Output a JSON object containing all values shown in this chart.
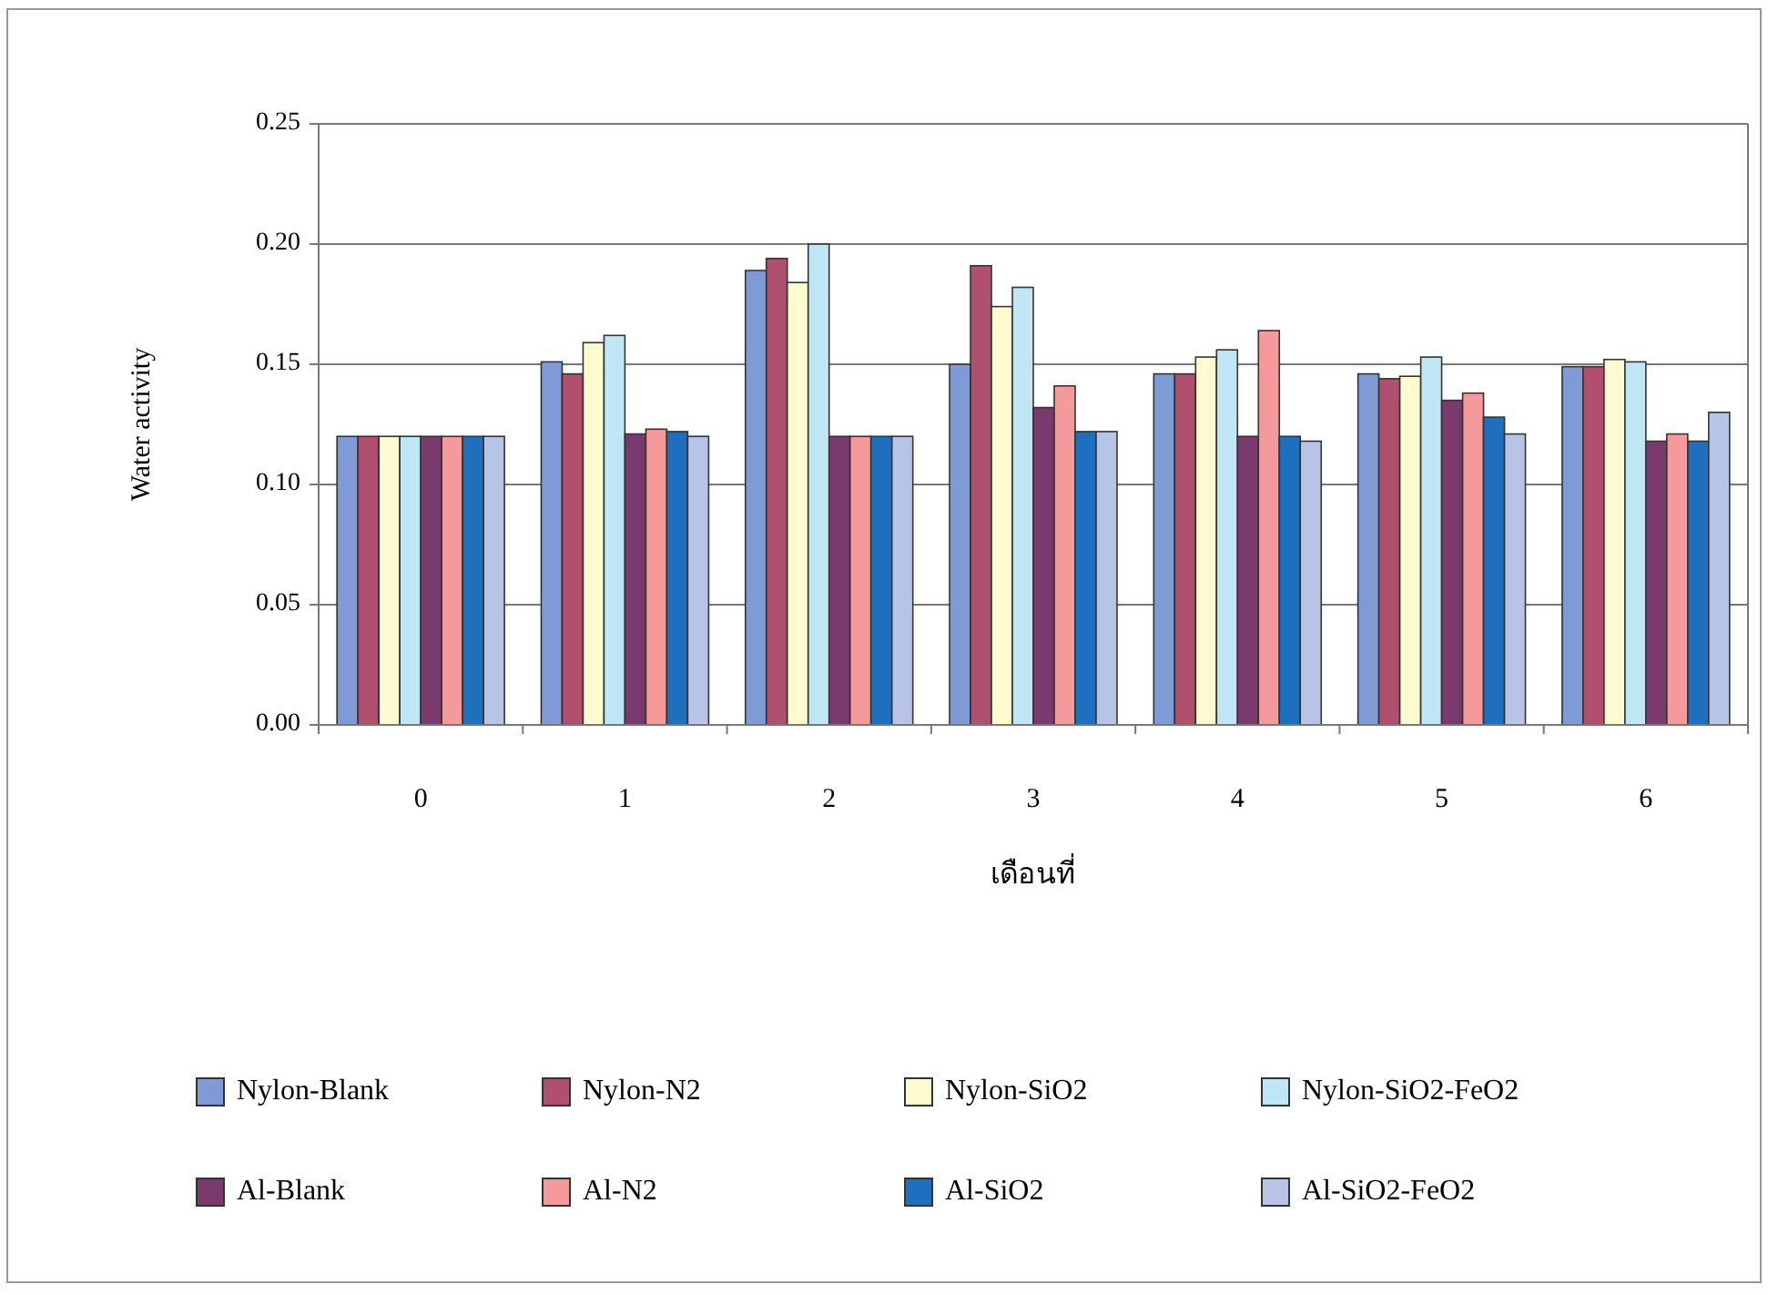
{
  "chart_data": {
    "type": "bar",
    "xlabel": "เดือนที่",
    "ylabel": "Water activity",
    "categories": [
      "0",
      "1",
      "2",
      "3",
      "4",
      "5",
      "6"
    ],
    "series": [
      {
        "name": "Nylon-Blank",
        "color": "#7f9bd6",
        "values": [
          0.12,
          0.151,
          0.189,
          0.15,
          0.146,
          0.146,
          0.149
        ]
      },
      {
        "name": "Nylon-N2",
        "color": "#b0506e",
        "values": [
          0.12,
          0.146,
          0.194,
          0.191,
          0.146,
          0.144,
          0.149
        ]
      },
      {
        "name": "Nylon-SiO2",
        "color": "#fffbd0",
        "values": [
          0.12,
          0.159,
          0.184,
          0.174,
          0.153,
          0.145,
          0.152
        ]
      },
      {
        "name": "Nylon-SiO2-FeO2",
        "color": "#bfe6f5",
        "values": [
          0.12,
          0.162,
          0.2,
          0.182,
          0.156,
          0.153,
          0.151
        ]
      },
      {
        "name": "Al-Blank",
        "color": "#7a3a6e",
        "values": [
          0.12,
          0.121,
          0.12,
          0.132,
          0.12,
          0.135,
          0.118
        ]
      },
      {
        "name": "Al-N2",
        "color": "#f59a9a",
        "values": [
          0.12,
          0.123,
          0.12,
          0.141,
          0.164,
          0.138,
          0.121
        ]
      },
      {
        "name": "Al-SiO2",
        "color": "#1f6fbf",
        "values": [
          0.12,
          0.122,
          0.12,
          0.122,
          0.12,
          0.128,
          0.118
        ]
      },
      {
        "name": "Al-SiO2-FeO2",
        "color": "#b8c4e6",
        "values": [
          0.12,
          0.12,
          0.12,
          0.122,
          0.118,
          0.121,
          0.13
        ]
      }
    ],
    "ylim": [
      0,
      0.25
    ],
    "yticks": [
      {
        "value": 0,
        "label": "0.00"
      },
      {
        "value": 0.05,
        "label": "0.05"
      },
      {
        "value": 0.1,
        "label": "0.10"
      },
      {
        "value": 0.15,
        "label": "0.15"
      },
      {
        "value": 0.2,
        "label": "0.20"
      },
      {
        "value": 0.25,
        "label": "0.25"
      }
    ],
    "grid": "y",
    "legend": "bottom"
  }
}
